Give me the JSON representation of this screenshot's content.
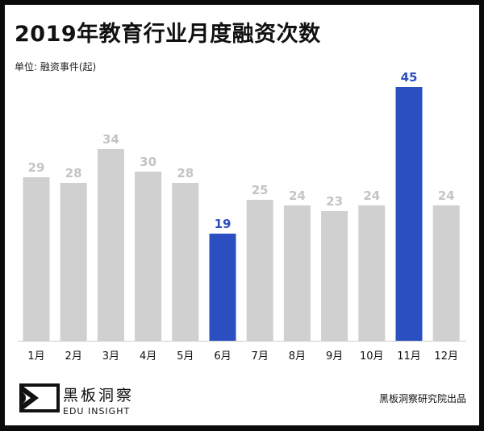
{
  "chart_data": {
    "type": "bar",
    "title": "2019年教育行业月度融资次数",
    "subtitle": "单位: 融资事件(起)",
    "categories": [
      "1月",
      "2月",
      "3月",
      "4月",
      "5月",
      "6月",
      "7月",
      "8月",
      "9月",
      "10月",
      "11月",
      "12月"
    ],
    "values": [
      29,
      28,
      34,
      30,
      28,
      19,
      25,
      24,
      23,
      24,
      45,
      24
    ],
    "highlighted": [
      "6月",
      "11月"
    ],
    "ylim": [
      0,
      45
    ],
    "grid": false,
    "colors": {
      "default": "#d0d0d0",
      "highlight": "#2b4fc0",
      "default_label": "#c4c4c4",
      "highlight_label": "#2b4fc0"
    }
  },
  "footer": {
    "logo_cn": "黑板洞察",
    "logo_en": "EDU INSIGHT",
    "credit": "黑板洞察研究院出品"
  }
}
